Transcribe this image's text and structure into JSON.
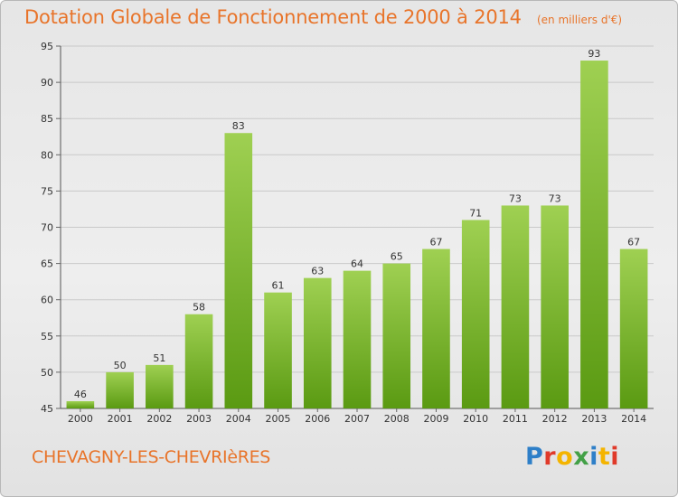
{
  "header": {
    "title": "Dotation Globale de Fonctionnement de 2000 à 2014",
    "subtitle": "(en milliers d'€)"
  },
  "footer": {
    "commune": "CHEVAGNY-LES-CHEVRIèRES",
    "logo": "Proxiti"
  },
  "colors": {
    "title": "#e8742a",
    "bar_top": "#9fd052",
    "bar_bottom": "#5a9a12",
    "logo_letters": [
      "#2e7fc8",
      "#e03a2a",
      "#f4b400",
      "#43a047",
      "#2e7fc8",
      "#f4b400",
      "#e03a2a"
    ]
  },
  "chart_data": {
    "type": "bar",
    "categories": [
      "2000",
      "2001",
      "2002",
      "2003",
      "2004",
      "2005",
      "2006",
      "2007",
      "2008",
      "2009",
      "2010",
      "2011",
      "2012",
      "2013",
      "2014"
    ],
    "values": [
      46,
      50,
      51,
      58,
      83,
      61,
      63,
      64,
      65,
      67,
      71,
      73,
      73,
      93,
      67
    ],
    "ylim": [
      45,
      95
    ],
    "yticks": [
      45,
      50,
      55,
      60,
      65,
      70,
      75,
      80,
      85,
      90,
      95
    ],
    "grid": true,
    "xlabel": "",
    "ylabel": ""
  }
}
